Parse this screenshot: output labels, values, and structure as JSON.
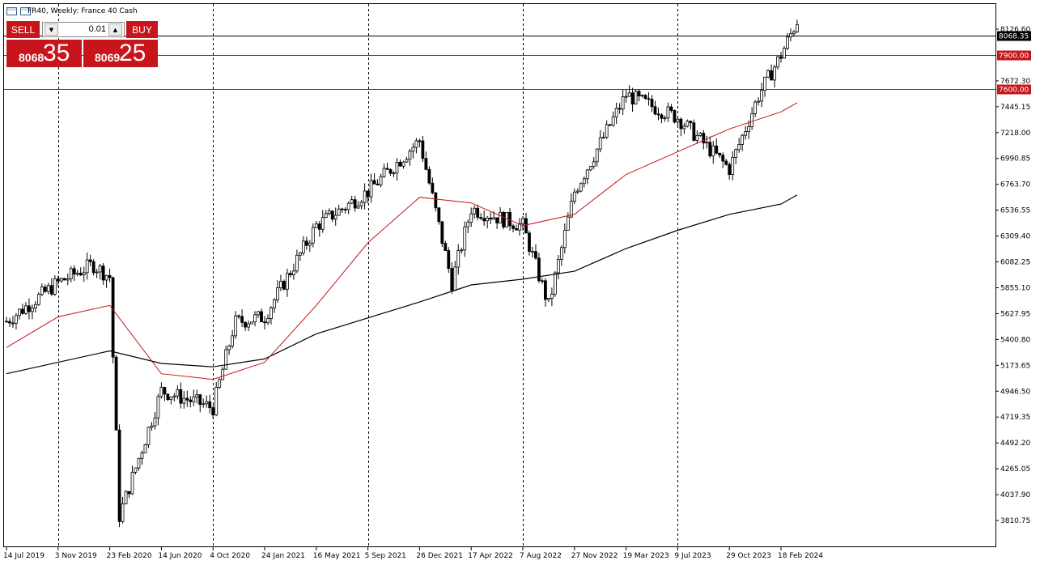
{
  "header": {
    "symbol_title": "FR40, Weekly:  France 40 Cash"
  },
  "trade_panel": {
    "sell_label": "SELL",
    "buy_label": "BUY",
    "lot_value": "0.01",
    "sell_price_small": "8068",
    "sell_price_big": "35",
    "buy_price_small": "8069",
    "buy_price_big": "25"
  },
  "colors": {
    "candle": "#000000",
    "ma_fast": "#c8151b",
    "ma_slow": "#000000",
    "level_line": "#c8151b",
    "price_label_bg": "#c8151b"
  },
  "chart_data": {
    "type": "candlestick",
    "timeframe": "Weekly",
    "y_axis": {
      "ylim": [
        3700,
        8320
      ],
      "tick_labels": [
        "8126.60",
        "7672.30",
        "7445.15",
        "7218.00",
        "6990.85",
        "6763.70",
        "6536.55",
        "6309.40",
        "6082.25",
        "5855.10",
        "5627.95",
        "5400.80",
        "5173.65",
        "4946.50",
        "4719.35",
        "4492.20",
        "4265.05",
        "4037.90",
        "3810.75"
      ]
    },
    "x_axis": {
      "tick_labels": [
        "14 Jul 2019",
        "3 Nov 2019",
        "23 Feb 2020",
        "14 Jun 2020",
        "4 Oct 2020",
        "24 Jan 2021",
        "16 May 2021",
        "5 Sep 2021",
        "26 Dec 2021",
        "17 Apr 2022",
        "7 Aug 2022",
        "27 Nov 2022",
        "19 Mar 2023",
        "9 Jul 2023",
        "29 Oct 2023",
        "18 Feb 2024"
      ]
    },
    "current_price": {
      "value": 8068.35,
      "label": "8068.35"
    },
    "horizontal_levels": [
      {
        "value": 7900.0,
        "label": "7900.00"
      },
      {
        "value": 7600.0,
        "label": "7600.00"
      }
    ],
    "close_path": [
      {
        "x": "14 Jul 2019",
        "y": 5560
      },
      {
        "x": "3 Nov 2019",
        "y": 5900
      },
      {
        "x": "17 Jan 2020",
        "y": 6060
      },
      {
        "x": "23 Feb 2020",
        "y": 5950
      },
      {
        "x": "15 Mar 2020",
        "y": 3850
      },
      {
        "x": "14 Jun 2020",
        "y": 4950
      },
      {
        "x": "4 Oct 2020",
        "y": 4800
      },
      {
        "x": "20 Nov 2020",
        "y": 5550
      },
      {
        "x": "24 Jan 2021",
        "y": 5600
      },
      {
        "x": "16 May 2021",
        "y": 6400
      },
      {
        "x": "5 Sep 2021",
        "y": 6700
      },
      {
        "x": "26 Dec 2021",
        "y": 7150
      },
      {
        "x": "6 Mar 2022",
        "y": 5900
      },
      {
        "x": "17 Apr 2022",
        "y": 6550
      },
      {
        "x": "7 Aug 2022",
        "y": 6400
      },
      {
        "x": "2 Oct 2022",
        "y": 5700
      },
      {
        "x": "27 Nov 2022",
        "y": 6700
      },
      {
        "x": "19 Mar 2023",
        "y": 7550
      },
      {
        "x": "9 Jul 2023",
        "y": 7350
      },
      {
        "x": "29 Oct 2023",
        "y": 6900
      },
      {
        "x": "1 Jan 2024",
        "y": 7550
      },
      {
        "x": "18 Feb 2024",
        "y": 7900
      },
      {
        "x": "24 Mar 2024",
        "y": 8200
      }
    ],
    "ma_fast_path": [
      {
        "x": "14 Jul 2019",
        "y": 5330
      },
      {
        "x": "3 Nov 2019",
        "y": 5600
      },
      {
        "x": "23 Feb 2020",
        "y": 5700
      },
      {
        "x": "14 Jun 2020",
        "y": 5100
      },
      {
        "x": "4 Oct 2020",
        "y": 5050
      },
      {
        "x": "24 Jan 2021",
        "y": 5200
      },
      {
        "x": "16 May 2021",
        "y": 5700
      },
      {
        "x": "5 Sep 2021",
        "y": 6250
      },
      {
        "x": "26 Dec 2021",
        "y": 6650
      },
      {
        "x": "17 Apr 2022",
        "y": 6600
      },
      {
        "x": "7 Aug 2022",
        "y": 6400
      },
      {
        "x": "27 Nov 2022",
        "y": 6500
      },
      {
        "x": "19 Mar 2023",
        "y": 6850
      },
      {
        "x": "9 Jul 2023",
        "y": 7050
      },
      {
        "x": "29 Oct 2023",
        "y": 7250
      },
      {
        "x": "18 Feb 2024",
        "y": 7400
      },
      {
        "x": "24 Mar 2024",
        "y": 7480
      }
    ],
    "ma_slow_path": [
      {
        "x": "14 Jul 2019",
        "y": 5100
      },
      {
        "x": "3 Nov 2019",
        "y": 5200
      },
      {
        "x": "23 Feb 2020",
        "y": 5300
      },
      {
        "x": "14 Jun 2020",
        "y": 5190
      },
      {
        "x": "4 Oct 2020",
        "y": 5160
      },
      {
        "x": "24 Jan 2021",
        "y": 5230
      },
      {
        "x": "16 May 2021",
        "y": 5450
      },
      {
        "x": "26 Dec 2021",
        "y": 5730
      },
      {
        "x": "17 Apr 2022",
        "y": 5880
      },
      {
        "x": "7 Aug 2022",
        "y": 5930
      },
      {
        "x": "27 Nov 2022",
        "y": 6000
      },
      {
        "x": "19 Mar 2023",
        "y": 6200
      },
      {
        "x": "9 Jul 2023",
        "y": 6360
      },
      {
        "x": "29 Oct 2023",
        "y": 6500
      },
      {
        "x": "18 Feb 2024",
        "y": 6590
      },
      {
        "x": "24 Mar 2024",
        "y": 6670
      }
    ]
  }
}
